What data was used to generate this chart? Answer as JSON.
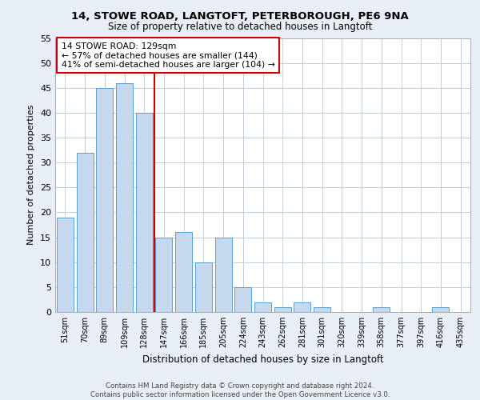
{
  "title1": "14, STOWE ROAD, LANGTOFT, PETERBOROUGH, PE6 9NA",
  "title2": "Size of property relative to detached houses in Langtoft",
  "xlabel": "Distribution of detached houses by size in Langtoft",
  "ylabel": "Number of detached properties",
  "categories": [
    "51sqm",
    "70sqm",
    "89sqm",
    "109sqm",
    "128sqm",
    "147sqm",
    "166sqm",
    "185sqm",
    "205sqm",
    "224sqm",
    "243sqm",
    "262sqm",
    "281sqm",
    "301sqm",
    "320sqm",
    "339sqm",
    "358sqm",
    "377sqm",
    "397sqm",
    "416sqm",
    "435sqm"
  ],
  "values": [
    19,
    32,
    45,
    46,
    40,
    15,
    16,
    10,
    15,
    5,
    2,
    1,
    2,
    1,
    0,
    0,
    1,
    0,
    0,
    1,
    0
  ],
  "bar_color": "#c5d8ed",
  "bar_edge_color": "#5a9fd4",
  "vline_x": 4.5,
  "vline_color": "#cc0000",
  "annotation_text": "14 STOWE ROAD: 129sqm\n← 57% of detached houses are smaller (144)\n41% of semi-detached houses are larger (104) →",
  "annotation_box_color": "#ffffff",
  "annotation_box_edge": "#cc0000",
  "ylim": [
    0,
    55
  ],
  "yticks": [
    0,
    5,
    10,
    15,
    20,
    25,
    30,
    35,
    40,
    45,
    50,
    55
  ],
  "footer": "Contains HM Land Registry data © Crown copyright and database right 2024.\nContains public sector information licensed under the Open Government Licence v3.0.",
  "background_color": "#e8eef5",
  "plot_bg_color": "#ffffff",
  "grid_color": "#c0cfe0"
}
